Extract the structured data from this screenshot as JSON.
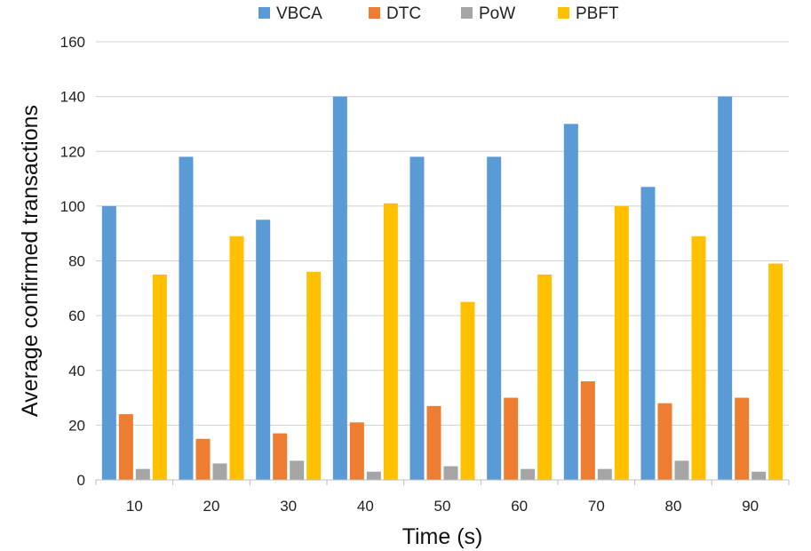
{
  "chart_data": {
    "type": "bar",
    "categories": [
      "10",
      "20",
      "30",
      "40",
      "50",
      "60",
      "70",
      "80",
      "90"
    ],
    "series": [
      {
        "name": "VBCA",
        "color": "#5b9bd5",
        "values": [
          100,
          118,
          95,
          140,
          118,
          118,
          130,
          107,
          140
        ]
      },
      {
        "name": "DTC",
        "color": "#ed7d31",
        "values": [
          24,
          15,
          17,
          21,
          27,
          30,
          36,
          28,
          30
        ]
      },
      {
        "name": "PoW",
        "color": "#a5a5a5",
        "values": [
          4,
          6,
          7,
          3,
          5,
          4,
          4,
          7,
          3
        ]
      },
      {
        "name": "PBFT",
        "color": "#ffc000",
        "values": [
          75,
          89,
          76,
          101,
          65,
          75,
          100,
          89,
          79
        ]
      }
    ],
    "xlabel": "Time (s)",
    "ylabel": "Average confirmed transactions",
    "ylim": [
      0,
      160
    ],
    "yticks": [
      0,
      20,
      40,
      60,
      80,
      100,
      120,
      140,
      160
    ],
    "grid": true,
    "legend_position": "top"
  }
}
